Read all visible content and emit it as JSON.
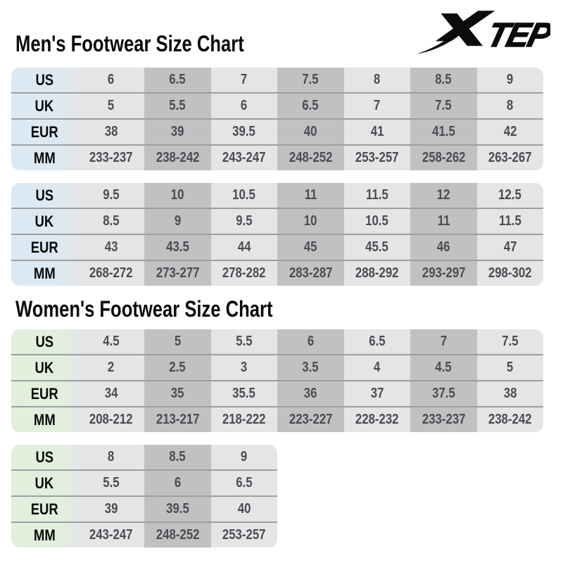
{
  "titles": {
    "mens": "Men's Footwear Size Chart",
    "womens": "Women's Footwear Size Chart"
  },
  "brand": {
    "name": "XTEP",
    "tep_text": "TEP"
  },
  "colors": {
    "background": "#ffffff",
    "mens_header_column": "#dde9f2",
    "womens_header_column": "#e3efdd",
    "column_light": "#e5e5e7",
    "column_dark": "#c1c1c3",
    "row_separator": "#9aa0a2",
    "value_text": "#4b4c50",
    "label_text": "#0a0a0b",
    "logo": "#0b0b0b"
  },
  "chart_data": [
    {
      "type": "table",
      "section": "mens",
      "title": "Men's Footwear Size Chart",
      "header_color": "#dde9f2",
      "row_labels": [
        "US",
        "UK",
        "EUR",
        "MM"
      ],
      "rows": [
        {
          "label": "US",
          "values": [
            "6",
            "6.5",
            "7",
            "7.5",
            "8",
            "8.5",
            "9"
          ]
        },
        {
          "label": "UK",
          "values": [
            "5",
            "5.5",
            "6",
            "6.5",
            "7",
            "7.5",
            "8"
          ]
        },
        {
          "label": "EUR",
          "values": [
            "38",
            "39",
            "39.5",
            "40",
            "41",
            "41.5",
            "42"
          ]
        },
        {
          "label": "MM",
          "values": [
            "233-237",
            "238-242",
            "243-247",
            "248-252",
            "253-257",
            "258-262",
            "263-267"
          ]
        }
      ]
    },
    {
      "type": "table",
      "section": "mens",
      "title": "Men's Footwear Size Chart (continued)",
      "header_color": "#dde9f2",
      "row_labels": [
        "US",
        "UK",
        "EUR",
        "MM"
      ],
      "rows": [
        {
          "label": "US",
          "values": [
            "9.5",
            "10",
            "10.5",
            "11",
            "11.5",
            "12",
            "12.5"
          ]
        },
        {
          "label": "UK",
          "values": [
            "8.5",
            "9",
            "9.5",
            "10",
            "10.5",
            "11",
            "11.5"
          ]
        },
        {
          "label": "EUR",
          "values": [
            "43",
            "43.5",
            "44",
            "45",
            "45.5",
            "46",
            "47"
          ]
        },
        {
          "label": "MM",
          "values": [
            "268-272",
            "273-277",
            "278-282",
            "283-287",
            "288-292",
            "293-297",
            "298-302"
          ]
        }
      ]
    },
    {
      "type": "table",
      "section": "womens",
      "title": "Women's Footwear Size Chart",
      "header_color": "#e3efdd",
      "row_labels": [
        "US",
        "UK",
        "EUR",
        "MM"
      ],
      "rows": [
        {
          "label": "US",
          "values": [
            "4.5",
            "5",
            "5.5",
            "6",
            "6.5",
            "7",
            "7.5"
          ]
        },
        {
          "label": "UK",
          "values": [
            "2",
            "2.5",
            "3",
            "3.5",
            "4",
            "4.5",
            "5"
          ]
        },
        {
          "label": "EUR",
          "values": [
            "34",
            "35",
            "35.5",
            "36",
            "37",
            "37.5",
            "38"
          ]
        },
        {
          "label": "MM",
          "values": [
            "208-212",
            "213-217",
            "218-222",
            "223-227",
            "228-232",
            "233-237",
            "238-242"
          ]
        }
      ]
    },
    {
      "type": "table",
      "section": "womens",
      "title": "Women's Footwear Size Chart (continued)",
      "header_color": "#e3efdd",
      "row_labels": [
        "US",
        "UK",
        "EUR",
        "MM"
      ],
      "rows": [
        {
          "label": "US",
          "values": [
            "8",
            "8.5",
            "9"
          ]
        },
        {
          "label": "UK",
          "values": [
            "5.5",
            "6",
            "6.5"
          ]
        },
        {
          "label": "EUR",
          "values": [
            "39",
            "39.5",
            "40"
          ]
        },
        {
          "label": "MM",
          "values": [
            "243-247",
            "248-252",
            "253-257"
          ]
        }
      ]
    }
  ]
}
